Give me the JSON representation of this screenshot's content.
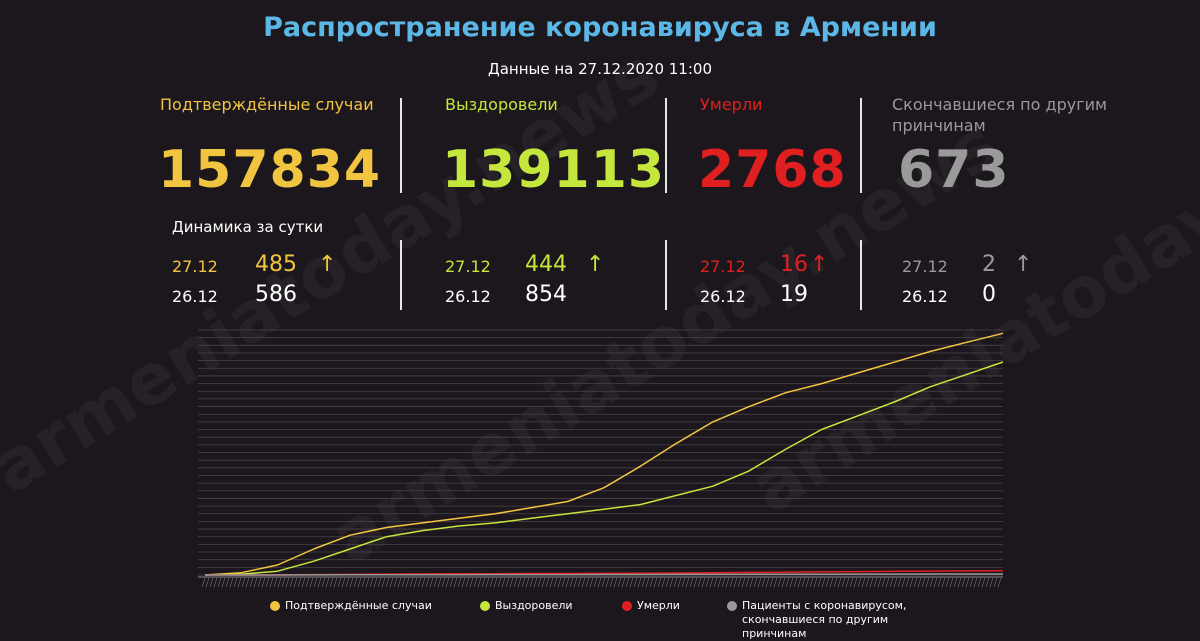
{
  "title": "Распространение коронавируса в Армении",
  "subtitle": "Данные на 27.12.2020 11:00",
  "watermark": "armeniatoday.news",
  "stats": [
    {
      "label": "Подтверждённые случаи",
      "value": "157834",
      "color": "#f2c541"
    },
    {
      "label": "Выздоровели",
      "value": "139113",
      "color": "#c5e63c"
    },
    {
      "label": "Умерли",
      "value": "2768",
      "color": "#e02020"
    },
    {
      "label": "Скончавшиеся по другим принчинам",
      "value": "673",
      "color": "#9a9a9a"
    }
  ],
  "dynamics": {
    "label": "Динамика за сутки",
    "groups": [
      {
        "d1": "27.12",
        "v1": "485",
        "d2": "26.12",
        "v2": "586",
        "arrow": "↑"
      },
      {
        "d1": "27.12",
        "v1": "444",
        "d2": "26.12",
        "v2": "854",
        "arrow": "↑"
      },
      {
        "d1": "27.12",
        "v1": "16",
        "d2": "26.12",
        "v2": "19",
        "arrow": "↑"
      },
      {
        "d1": "27.12",
        "v1": "2",
        "d2": "26.12",
        "v2": "0",
        "arrow": "↑"
      }
    ]
  },
  "legend": [
    {
      "label": "Подтверждённые случаи",
      "color": "#f2c541"
    },
    {
      "label": "Выздоровели",
      "color": "#c5e63c"
    },
    {
      "label": "Умерли",
      "color": "#e02020"
    },
    {
      "label": "Пациенты с коронавирусом, скончавшиеся по другим принчинам",
      "color": "#9a9a9a"
    }
  ],
  "chart_data": {
    "type": "line",
    "title": "",
    "xlabel": "",
    "ylabel": "",
    "ylim": [
      0,
      160000
    ],
    "grid": true,
    "legend_position": "bottom",
    "x_description": "cumulative by day",
    "series": [
      {
        "name": "Подтверждённые случаи",
        "color": "#f2c541",
        "values": [
          0,
          1500,
          6500,
          17000,
          26000,
          31000,
          34000,
          37000,
          40000,
          44000,
          48000,
          57000,
          71000,
          86000,
          100000,
          110000,
          119000,
          125000,
          132000,
          139000,
          146000,
          152000,
          157834
        ]
      },
      {
        "name": "Выздоровели",
        "color": "#c5e63c",
        "values": [
          0,
          500,
          2500,
          9000,
          17000,
          25000,
          29000,
          32000,
          34000,
          37000,
          40000,
          43000,
          46000,
          52000,
          58000,
          68000,
          82000,
          95000,
          104000,
          113000,
          123000,
          131000,
          139113
        ]
      },
      {
        "name": "Умерли",
        "color": "#e02020",
        "values": [
          0,
          10,
          60,
          230,
          400,
          600,
          750,
          830,
          880,
          950,
          1000,
          1050,
          1150,
          1300,
          1500,
          1700,
          1850,
          2000,
          2200,
          2400,
          2550,
          2700,
          2768
        ]
      },
      {
        "name": "Пациенты с коронавирусом, скончавшиеся по другим принчинам",
        "color": "#9a9a9a",
        "values": [
          0,
          5,
          20,
          60,
          100,
          150,
          190,
          210,
          230,
          250,
          270,
          300,
          330,
          370,
          410,
          450,
          490,
          530,
          570,
          610,
          640,
          660,
          673
        ]
      }
    ]
  }
}
